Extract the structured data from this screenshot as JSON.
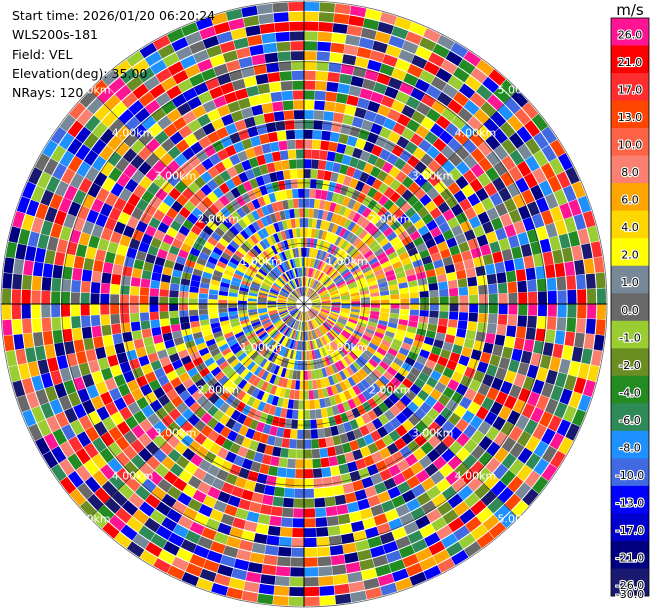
{
  "info": {
    "start_time": "Start time: 2026/01/20 06:20:24",
    "instrument": "WLS200s-181",
    "field": "Field: VEL",
    "elevation": "Elevation(deg): 35.00",
    "nrays": "NRays: 120"
  },
  "scan": {
    "nrays": 120,
    "range_rings_km": [
      1.0,
      2.0,
      3.0,
      4.0,
      5.0
    ],
    "ring_label_suffix": "km"
  },
  "colorbar": {
    "unit": "m/s",
    "ticks": [
      "26.0",
      "21.0",
      "17.0",
      "13.0",
      "10.0",
      "8.0",
      "6.0",
      "4.0",
      "2.0",
      "1.0",
      "0.0",
      "-1.0",
      "-2.0",
      "-4.0",
      "-6.0",
      "-8.0",
      "-10.0",
      "-13.0",
      "-17.0",
      "-21.0",
      "-26.0",
      "-30.0"
    ],
    "colors": [
      "#ff1493",
      "#ff0000",
      "#ff2d2d",
      "#ff4500",
      "#ff6347",
      "#fa8072",
      "#ffa500",
      "#ffd700",
      "#ffff00",
      "#778899",
      "#696969",
      "#9acd32",
      "#6b8e23",
      "#228b22",
      "#2e8b57",
      "#1e90ff",
      "#4169e1",
      "#0000ff",
      "#0000cd",
      "#000080",
      "#191970"
    ]
  }
}
